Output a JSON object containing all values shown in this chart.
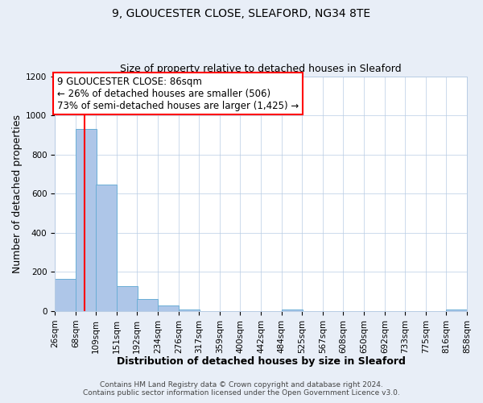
{
  "title": "9, GLOUCESTER CLOSE, SLEAFORD, NG34 8TE",
  "subtitle": "Size of property relative to detached houses in Sleaford",
  "xlabel": "Distribution of detached houses by size in Sleaford",
  "ylabel": "Number of detached properties",
  "bin_edges": [
    26,
    68,
    109,
    151,
    192,
    234,
    276,
    317,
    359,
    400,
    442,
    484,
    525,
    567,
    608,
    650,
    692,
    733,
    775,
    816,
    858
  ],
  "bin_labels": [
    "26sqm",
    "68sqm",
    "109sqm",
    "151sqm",
    "192sqm",
    "234sqm",
    "276sqm",
    "317sqm",
    "359sqm",
    "400sqm",
    "442sqm",
    "484sqm",
    "525sqm",
    "567sqm",
    "608sqm",
    "650sqm",
    "692sqm",
    "733sqm",
    "775sqm",
    "816sqm",
    "858sqm"
  ],
  "bar_heights": [
    163,
    930,
    648,
    127,
    60,
    28,
    10,
    0,
    0,
    0,
    0,
    9,
    0,
    0,
    0,
    0,
    0,
    0,
    0,
    9
  ],
  "bar_color": "#aec6e8",
  "bar_edge_color": "#6aaed6",
  "vline_x": 86,
  "vline_color": "red",
  "ylim": [
    0,
    1200
  ],
  "yticks": [
    0,
    200,
    400,
    600,
    800,
    1000,
    1200
  ],
  "annotation_line1": "9 GLOUCESTER CLOSE: 86sqm",
  "annotation_line2": "← 26% of detached houses are smaller (506)",
  "annotation_line3": "73% of semi-detached houses are larger (1,425) →",
  "annotation_box_color": "#ffffff",
  "annotation_box_edge_color": "red",
  "footer_line1": "Contains HM Land Registry data © Crown copyright and database right 2024.",
  "footer_line2": "Contains public sector information licensed under the Open Government Licence v3.0.",
  "background_color": "#e8eef7",
  "plot_background_color": "#ffffff",
  "grid_color": "#b8cce4",
  "title_fontsize": 10,
  "subtitle_fontsize": 9,
  "axis_label_fontsize": 9,
  "tick_fontsize": 7.5,
  "annotation_fontsize": 8.5,
  "footer_fontsize": 6.5
}
